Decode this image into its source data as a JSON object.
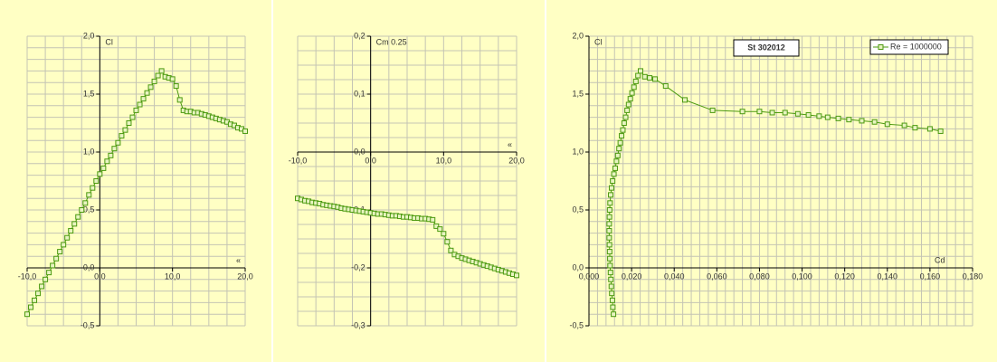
{
  "chart_data": [
    {
      "type": "line",
      "xlabel": "«",
      "ylabel": "Cl",
      "color": "#4c9a10",
      "x": [
        -10,
        -9.5,
        -9,
        -8.5,
        -8,
        -7.5,
        -7,
        -6.5,
        -6,
        -5.5,
        -5,
        -4.5,
        -4,
        -3.5,
        -3,
        -2.5,
        -2,
        -1.5,
        -1,
        -0.5,
        0,
        0.5,
        1,
        1.5,
        2,
        2.5,
        3,
        3.5,
        4,
        4.5,
        5,
        5.5,
        6,
        6.5,
        7,
        7.5,
        8,
        8.5,
        9,
        9.5,
        10,
        10.5,
        11,
        11.5,
        12,
        12.5,
        13,
        13.5,
        14,
        14.5,
        15,
        15.5,
        16,
        16.5,
        17,
        17.5,
        18,
        18.5,
        19,
        19.5,
        20
      ],
      "values": [
        -0.4,
        -0.34,
        -0.28,
        -0.22,
        -0.16,
        -0.1,
        -0.04,
        0.02,
        0.08,
        0.14,
        0.2,
        0.26,
        0.32,
        0.38,
        0.44,
        0.5,
        0.56,
        0.63,
        0.69,
        0.75,
        0.81,
        0.86,
        0.92,
        0.97,
        1.03,
        1.08,
        1.14,
        1.19,
        1.25,
        1.3,
        1.36,
        1.41,
        1.46,
        1.51,
        1.56,
        1.61,
        1.66,
        1.7,
        1.65,
        1.64,
        1.63,
        1.57,
        1.45,
        1.36,
        1.35,
        1.35,
        1.34,
        1.34,
        1.33,
        1.32,
        1.31,
        1.3,
        1.29,
        1.28,
        1.27,
        1.26,
        1.24,
        1.23,
        1.21,
        1.2,
        1.18
      ],
      "xlim": [
        -10,
        20
      ],
      "ylim": [
        -0.5,
        2.0
      ],
      "xticks": [
        {
          "value": -10,
          "label": "-10,0"
        },
        {
          "value": 0,
          "label": "0,0"
        },
        {
          "value": 10,
          "label": "10,0"
        },
        {
          "value": 20,
          "label": "20,0"
        }
      ],
      "yticks": [
        {
          "value": -0.5,
          "label": "-0,5"
        },
        {
          "value": 0,
          "label": "0,0"
        },
        {
          "value": 0.5,
          "label": "0,5"
        },
        {
          "value": 1,
          "label": "1,0"
        },
        {
          "value": 1.5,
          "label": "1,5"
        },
        {
          "value": 2,
          "label": "2,0"
        }
      ],
      "grid_step": {
        "x": 2.5,
        "y": 0.1
      }
    },
    {
      "type": "line",
      "xlabel": "«",
      "ylabel": "Cm 0.25",
      "color": "#4c9a10",
      "x": [
        -10,
        -9.5,
        -9,
        -8.5,
        -8,
        -7.5,
        -7,
        -6.5,
        -6,
        -5.5,
        -5,
        -4.5,
        -4,
        -3.5,
        -3,
        -2.5,
        -2,
        -1.5,
        -1,
        -0.5,
        0,
        0.5,
        1,
        1.5,
        2,
        2.5,
        3,
        3.5,
        4,
        4.5,
        5,
        5.5,
        6,
        6.5,
        7,
        7.5,
        8,
        8.5,
        9,
        9.5,
        10,
        10.5,
        11,
        11.5,
        12,
        12.5,
        13,
        13.5,
        14,
        14.5,
        15,
        15.5,
        16,
        16.5,
        17,
        17.5,
        18,
        18.5,
        19,
        19.5,
        20
      ],
      "values": [
        -0.08,
        -0.082,
        -0.084,
        -0.085,
        -0.087,
        -0.088,
        -0.089,
        -0.091,
        -0.092,
        -0.093,
        -0.094,
        -0.095,
        -0.097,
        -0.098,
        -0.099,
        -0.1,
        -0.101,
        -0.102,
        -0.103,
        -0.104,
        -0.105,
        -0.106,
        -0.107,
        -0.107,
        -0.108,
        -0.109,
        -0.11,
        -0.11,
        -0.111,
        -0.112,
        -0.112,
        -0.113,
        -0.114,
        -0.114,
        -0.115,
        -0.115,
        -0.116,
        -0.117,
        -0.128,
        -0.133,
        -0.141,
        -0.155,
        -0.17,
        -0.177,
        -0.18,
        -0.183,
        -0.185,
        -0.187,
        -0.189,
        -0.191,
        -0.193,
        -0.195,
        -0.197,
        -0.199,
        -0.201,
        -0.203,
        -0.205,
        -0.207,
        -0.209,
        -0.211,
        -0.213
      ],
      "xlim": [
        -10,
        20
      ],
      "ylim": [
        -0.3,
        0.2
      ],
      "xticks": [
        {
          "value": -10,
          "label": "-10,0"
        },
        {
          "value": 0,
          "label": "0,0"
        },
        {
          "value": 10,
          "label": "10,0"
        },
        {
          "value": 20,
          "label": "20,0"
        }
      ],
      "yticks": [
        {
          "value": -0.3,
          "label": "-0,3"
        },
        {
          "value": -0.2,
          "label": "-0,2"
        },
        {
          "value": -0.1,
          "label": "-0,1"
        },
        {
          "value": 0,
          "label": "0,0"
        },
        {
          "value": 0.1,
          "label": "0,1"
        },
        {
          "value": 0.2,
          "label": "0,2"
        }
      ],
      "grid_step": {
        "x": 2.5,
        "y": 0.025
      }
    },
    {
      "type": "line",
      "title": "St 302012",
      "xlabel": "Cd",
      "ylabel": "Cl",
      "legend": "upper right",
      "x": [
        0.0115,
        0.0112,
        0.011,
        0.0107,
        0.0105,
        0.0103,
        0.0101,
        0.0099,
        0.0098,
        0.0097,
        0.0096,
        0.0095,
        0.0095,
        0.0095,
        0.0096,
        0.0097,
        0.0099,
        0.0102,
        0.0106,
        0.0111,
        0.0117,
        0.0123,
        0.0129,
        0.0135,
        0.0141,
        0.0147,
        0.0153,
        0.0159,
        0.0165,
        0.0172,
        0.0179,
        0.0186,
        0.0194,
        0.0202,
        0.0211,
        0.022,
        0.023,
        0.0242,
        0.0262,
        0.0285,
        0.031,
        0.036,
        0.045,
        0.058,
        0.072,
        0.08,
        0.086,
        0.092,
        0.098,
        0.103,
        0.108,
        0.112,
        0.117,
        0.122,
        0.128,
        0.134,
        0.14,
        0.148,
        0.153,
        0.16,
        0.165
      ],
      "series": [
        {
          "name": "Re = 1000000",
          "color": "#4c9a10",
          "values": [
            -0.4,
            -0.34,
            -0.28,
            -0.22,
            -0.16,
            -0.1,
            -0.04,
            0.02,
            0.08,
            0.14,
            0.2,
            0.26,
            0.32,
            0.38,
            0.44,
            0.5,
            0.56,
            0.63,
            0.69,
            0.75,
            0.81,
            0.86,
            0.92,
            0.97,
            1.03,
            1.08,
            1.14,
            1.19,
            1.25,
            1.3,
            1.36,
            1.41,
            1.46,
            1.51,
            1.56,
            1.61,
            1.66,
            1.7,
            1.65,
            1.64,
            1.63,
            1.57,
            1.45,
            1.36,
            1.35,
            1.35,
            1.34,
            1.34,
            1.33,
            1.32,
            1.31,
            1.3,
            1.29,
            1.28,
            1.27,
            1.26,
            1.24,
            1.23,
            1.21,
            1.2,
            1.18
          ]
        }
      ],
      "xlim": [
        0,
        0.18
      ],
      "ylim": [
        -0.5,
        2.0
      ],
      "xticks": [
        {
          "value": 0,
          "label": "0,000"
        },
        {
          "value": 0.02,
          "label": "0,020"
        },
        {
          "value": 0.04,
          "label": "0,040"
        },
        {
          "value": 0.06,
          "label": "0,060"
        },
        {
          "value": 0.08,
          "label": "0,080"
        },
        {
          "value": 0.1,
          "label": "0,100"
        },
        {
          "value": 0.12,
          "label": "0,120"
        },
        {
          "value": 0.14,
          "label": "0,140"
        },
        {
          "value": 0.16,
          "label": "0,160"
        },
        {
          "value": 0.18,
          "label": "0,180"
        }
      ],
      "yticks": [
        {
          "value": -0.5,
          "label": "-0,5"
        },
        {
          "value": 0,
          "label": "0,0"
        },
        {
          "value": 0.5,
          "label": "0,5"
        },
        {
          "value": 1,
          "label": "1,0"
        },
        {
          "value": 1.5,
          "label": "1,5"
        },
        {
          "value": 2,
          "label": "2,0"
        }
      ],
      "grid_step": {
        "x": 0.004,
        "y": 0.1
      }
    }
  ]
}
